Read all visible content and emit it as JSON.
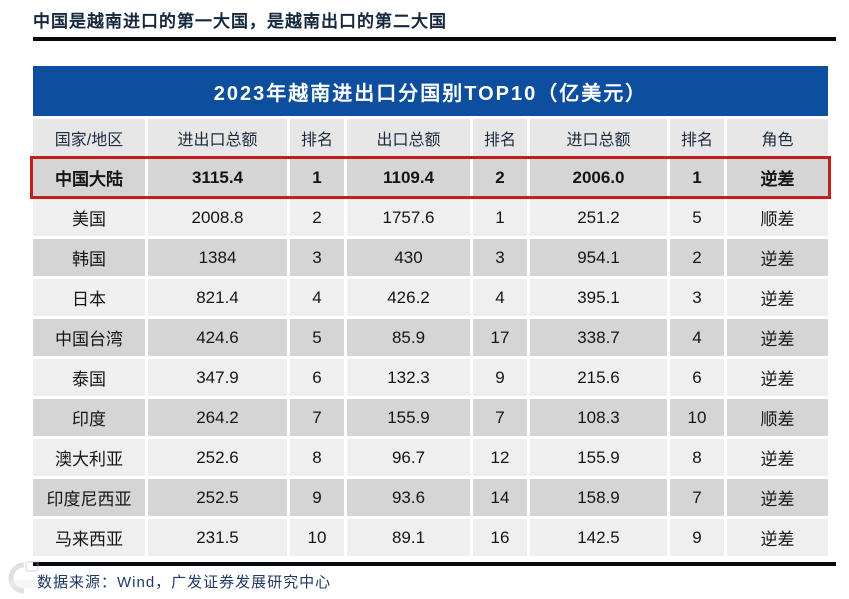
{
  "page": {
    "title": "中国是越南进口的第一大国，是越南出口的第二大国",
    "source_note": "数据来源：Wind，广发证券发展研究中心"
  },
  "colors": {
    "table_header_blue": "#0d4e9e",
    "header_row_bg": "#e7e7e7",
    "row_dark": "#d5d5d5",
    "row_light": "#efefef",
    "highlight_border": "#c1201e",
    "title_text": "#16283e",
    "footer_text": "#1f3864",
    "rule_line": "#05080f"
  },
  "chart_data": {
    "type": "table",
    "title": "2023年越南进出口分国别TOP10（亿美元）",
    "columns": [
      "国家/地区",
      "进出口总额",
      "排名",
      "出口总额",
      "排名",
      "进口总额",
      "排名",
      "角色"
    ],
    "rows": [
      [
        "中国大陆",
        "3115.4",
        "1",
        "1109.4",
        "2",
        "2006.0",
        "1",
        "逆差"
      ],
      [
        "美国",
        "2008.8",
        "2",
        "1757.6",
        "1",
        "251.2",
        "5",
        "顺差"
      ],
      [
        "韩国",
        "1384",
        "3",
        "430",
        "3",
        "954.1",
        "2",
        "逆差"
      ],
      [
        "日本",
        "821.4",
        "4",
        "426.2",
        "4",
        "395.1",
        "3",
        "逆差"
      ],
      [
        "中国台湾",
        "424.6",
        "5",
        "85.9",
        "17",
        "338.7",
        "4",
        "逆差"
      ],
      [
        "泰国",
        "347.9",
        "6",
        "132.3",
        "9",
        "215.6",
        "6",
        "逆差"
      ],
      [
        "印度",
        "264.2",
        "7",
        "155.9",
        "7",
        "108.3",
        "10",
        "顺差"
      ],
      [
        "澳大利亚",
        "252.6",
        "8",
        "96.7",
        "12",
        "155.9",
        "8",
        "逆差"
      ],
      [
        "印度尼西亚",
        "252.5",
        "9",
        "93.6",
        "14",
        "158.9",
        "7",
        "逆差"
      ],
      [
        "马来西亚",
        "231.5",
        "10",
        "89.1",
        "16",
        "142.5",
        "9",
        "逆差"
      ]
    ],
    "highlighted_row": "中国大陆",
    "layout": {
      "row_striping": true,
      "highlight_style": "red-border-box"
    }
  }
}
